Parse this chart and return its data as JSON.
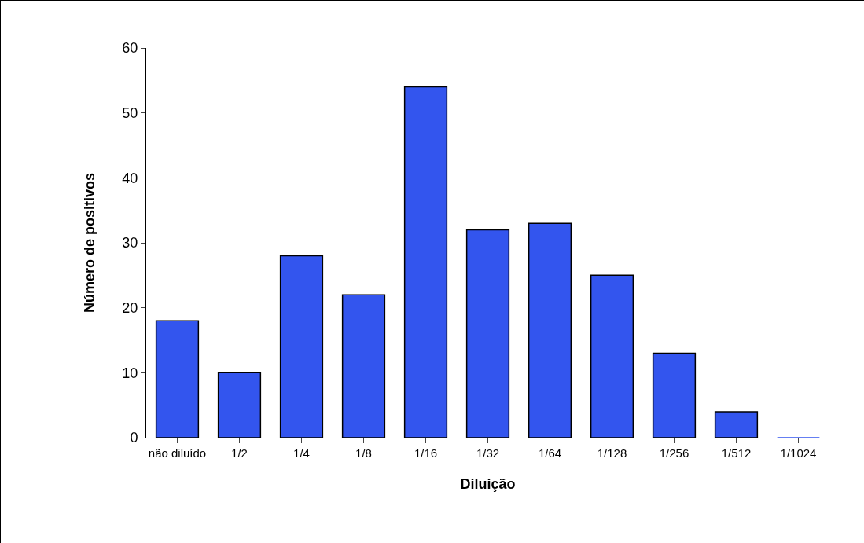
{
  "chart_data": {
    "type": "bar",
    "xlabel": "Diluição",
    "ylabel": "Número de positivos",
    "categories": [
      "não diluído",
      "1/2",
      "1/4",
      "1/8",
      "1/16",
      "1/32",
      "1/64",
      "1/128",
      "1/256",
      "1/512",
      "1/1024"
    ],
    "values": [
      18,
      10,
      28,
      22,
      54,
      32,
      33,
      25,
      13,
      4,
      0
    ],
    "color": "#3355ee",
    "ylim": [
      0,
      60
    ],
    "yticks": [
      0,
      10,
      20,
      30,
      40,
      50,
      60
    ],
    "grid": false
  }
}
